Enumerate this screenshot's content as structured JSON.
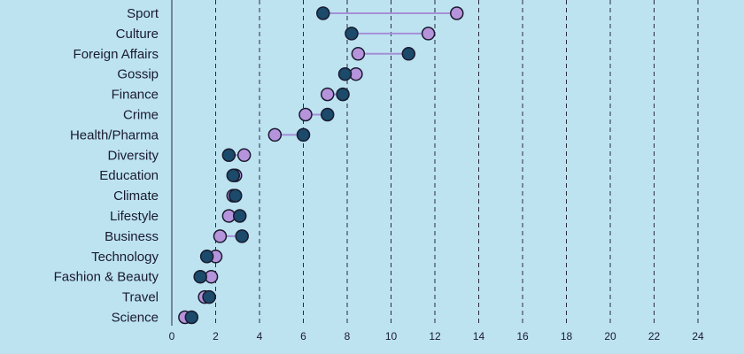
{
  "chart_data": {
    "type": "dumbbell",
    "categories": [
      "Sport",
      "Culture",
      "Foreign Affairs",
      "Gossip",
      "Finance",
      "Crime",
      "Health/Pharma",
      "Diversity",
      "Education",
      "Climate",
      "Lifestyle",
      "Business",
      "Technology",
      "Fashion & Beauty",
      "Travel",
      "Science"
    ],
    "series": [
      {
        "color": "#1b4a6b",
        "values": [
          6.9,
          8.2,
          10.8,
          7.9,
          7.8,
          7.1,
          6.0,
          2.6,
          2.8,
          2.9,
          3.1,
          3.2,
          1.6,
          1.3,
          1.7,
          0.9
        ]
      },
      {
        "color": "#b694dc",
        "values": [
          13.0,
          11.7,
          8.5,
          8.4,
          7.1,
          6.1,
          4.7,
          3.3,
          2.9,
          2.8,
          2.6,
          2.2,
          2.0,
          1.8,
          1.5,
          0.6
        ]
      }
    ],
    "xticks": [
      0,
      2,
      4,
      6,
      8,
      10,
      12,
      14,
      16,
      18,
      20,
      22,
      24
    ],
    "xlim": [
      0,
      24
    ],
    "grid": true,
    "connector_color": "#a48fd6"
  }
}
